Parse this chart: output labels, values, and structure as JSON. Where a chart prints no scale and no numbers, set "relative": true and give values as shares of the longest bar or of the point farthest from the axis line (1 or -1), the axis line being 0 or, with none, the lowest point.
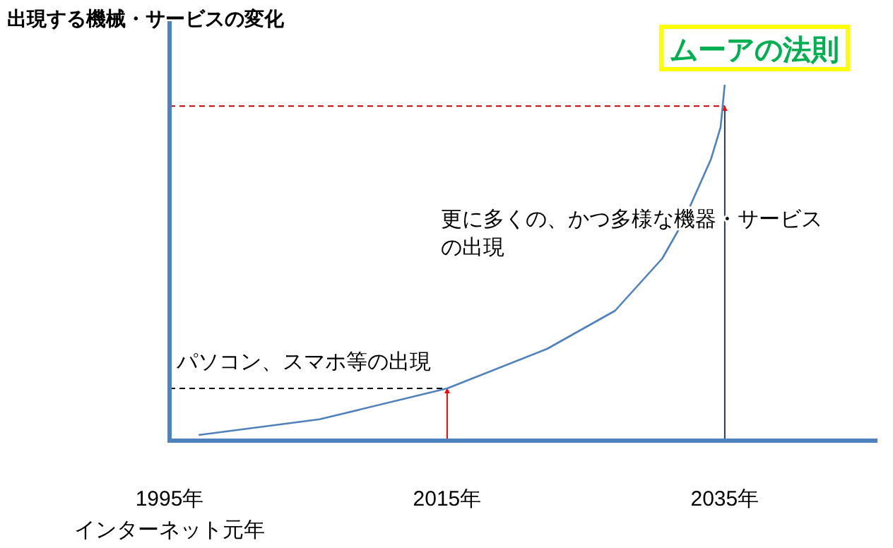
{
  "chart_data": {
    "type": "line",
    "title": "ムーアの法則",
    "ylabel": "出現する機械・サービスの変化",
    "x": [
      1997.1,
      2005.8,
      2015,
      2022.2,
      2027.1,
      2030.5,
      2032,
      2034,
      2034.7,
      2035
    ],
    "series": [
      {
        "color": "#4f81bd",
        "values": [
          0.016,
          0.06,
          0.147,
          0.258,
          0.365,
          0.512,
          0.615,
          0.79,
          0.881,
          1
        ]
      }
    ],
    "relative": true,
    "xlim": [
      1995,
      2046
    ],
    "xticks": [
      {
        "value": 1995,
        "label": "1995年"
      },
      {
        "value": 2015,
        "label": "2015年"
      },
      {
        "value": 2035,
        "label": "2035年"
      }
    ],
    "ref_lines": [
      {
        "axis": "y",
        "value": 0.147,
        "color": "#000000",
        "line_style": "dashed"
      },
      {
        "axis": "y",
        "value": 0.94,
        "color": "#c00000",
        "line_style": "dashed"
      },
      {
        "axis": "x",
        "value": 2015,
        "color": "#ff0000",
        "line_style": "solid"
      },
      {
        "axis": "x",
        "value": 2035,
        "color": "#1f3864",
        "line_style": "solid"
      }
    ],
    "annotations": [
      "パソコン、スマホ等の出現",
      "更に多くの、かつ多様な機器・サービスの出現",
      "インターネット元年"
    ]
  }
}
